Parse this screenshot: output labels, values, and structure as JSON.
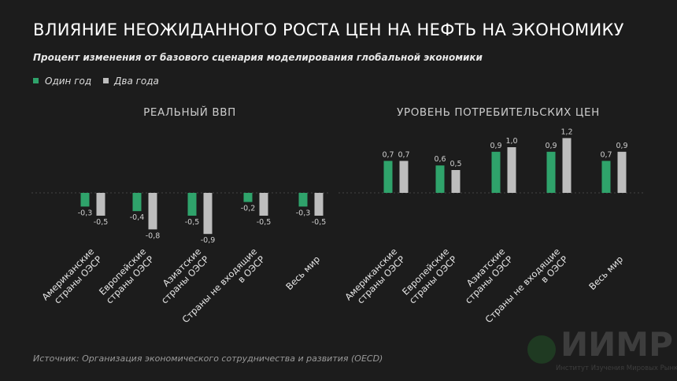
{
  "title": "ВЛИЯНИЕ НЕОЖИДАННОГО РОСТА ЦЕН НА НЕФТЬ НА ЭКОНОМИКУ",
  "subtitle": "Процент изменения от базового сценария моделирования глобальной экономики",
  "legend": [
    {
      "label": "Один год",
      "color": "#2fa36b"
    },
    {
      "label": "Два года",
      "color": "#bdbdbd"
    }
  ],
  "source": "Источник: Организация экономического сотрудничества и развития (OECD)",
  "logo": {
    "text": "ИИМР",
    "subtitle": "Институт Изучения Мировых Рынков"
  },
  "chart_data": [
    {
      "type": "bar",
      "title": "РЕАЛЬНЫЙ ВВП",
      "categories": [
        [
          "Американские",
          "страны ОЭСР"
        ],
        [
          "Европейские",
          "страны ОЭСР"
        ],
        [
          "Азиатские",
          "страны ОЭСР"
        ],
        [
          "Страны не входящие",
          "в ОЭСР"
        ],
        [
          "Весь мир"
        ]
      ],
      "series": [
        {
          "name": "Один год",
          "values": [
            -0.3,
            -0.4,
            -0.5,
            -0.2,
            -0.3
          ],
          "labels": [
            "-0,3",
            "-0,4",
            "-0,5",
            "-0,2",
            "-0,3"
          ]
        },
        {
          "name": "Два года",
          "values": [
            -0.5,
            -0.8,
            -0.9,
            -0.5,
            -0.5
          ],
          "labels": [
            "-0,5",
            "-0,8",
            "-0,9",
            "-0,5",
            "-0,5"
          ]
        }
      ]
    },
    {
      "type": "bar",
      "title": "УРОВЕНЬ ПОТРЕБИТЕЛЬСКИХ ЦЕН",
      "categories": [
        [
          "Американские",
          "страны ОЭСР"
        ],
        [
          "Европейские",
          "страны ОЭСР"
        ],
        [
          "Азиатские",
          "страны ОЭСР"
        ],
        [
          "Страны не входящие",
          "в ОЭСР"
        ],
        [
          "Весь мир"
        ]
      ],
      "series": [
        {
          "name": "Один год",
          "values": [
            0.7,
            0.6,
            0.9,
            0.9,
            0.7
          ],
          "labels": [
            "0,7",
            "0,6",
            "0,9",
            "0,9",
            "0,7"
          ]
        },
        {
          "name": "Два года",
          "values": [
            0.7,
            0.5,
            1.0,
            1.2,
            0.9
          ],
          "labels": [
            "0,7",
            "0,5",
            "1,0",
            "1,2",
            "0,9"
          ]
        }
      ]
    }
  ]
}
